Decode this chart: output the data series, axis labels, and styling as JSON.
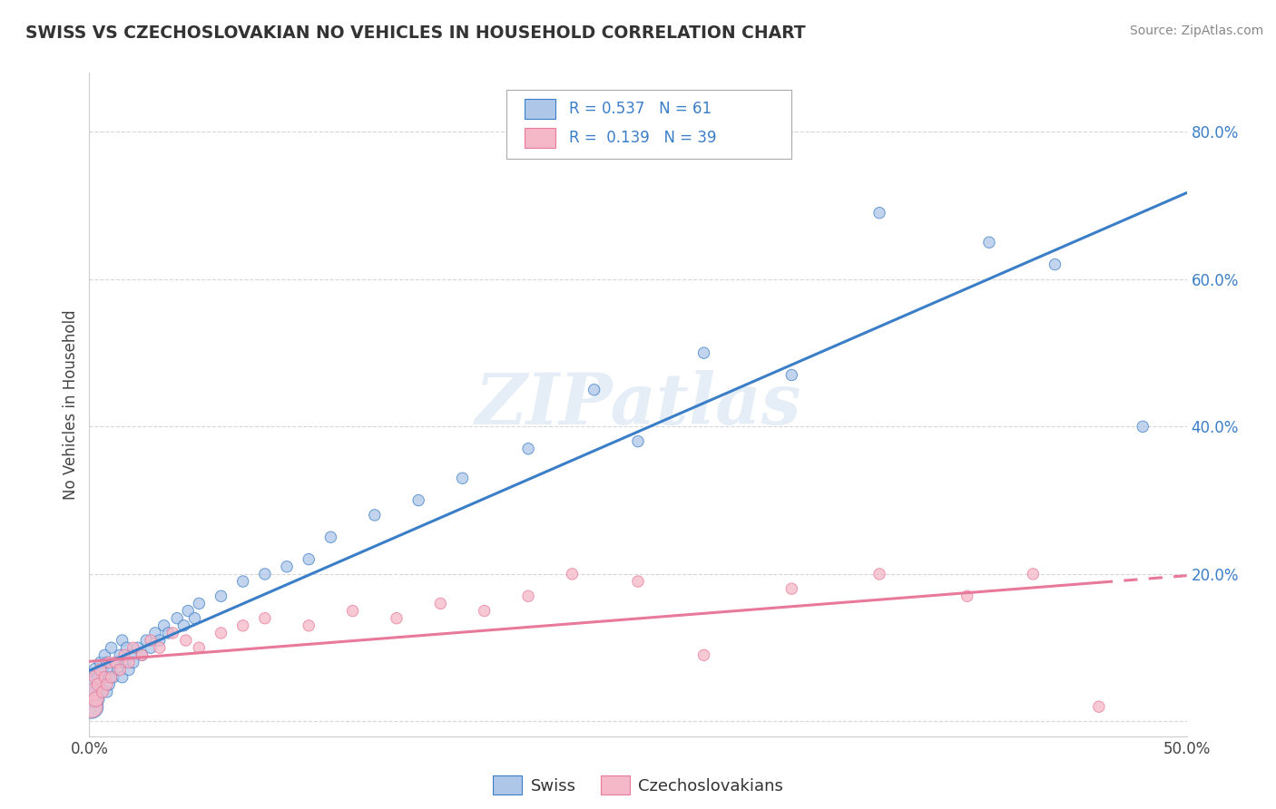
{
  "title": "SWISS VS CZECHOSLOVAKIAN NO VEHICLES IN HOUSEHOLD CORRELATION CHART",
  "source": "Source: ZipAtlas.com",
  "ylabel": "No Vehicles in Household",
  "xlim": [
    0.0,
    0.5
  ],
  "ylim": [
    -0.02,
    0.88
  ],
  "swiss_color": "#aec6e8",
  "czech_color": "#f5b8c8",
  "swiss_line_color": "#3b7ec8",
  "czech_line_color": "#e8799a",
  "legend_R_swiss": "0.537",
  "legend_N_swiss": "61",
  "legend_R_czech": "0.139",
  "legend_N_czech": "39",
  "watermark": "ZIPatlas",
  "swiss_points_x": [
    0.001,
    0.002,
    0.002,
    0.003,
    0.003,
    0.004,
    0.004,
    0.005,
    0.005,
    0.006,
    0.006,
    0.007,
    0.007,
    0.008,
    0.008,
    0.009,
    0.009,
    0.01,
    0.01,
    0.011,
    0.012,
    0.013,
    0.014,
    0.015,
    0.015,
    0.016,
    0.017,
    0.018,
    0.019,
    0.02,
    0.022,
    0.024,
    0.026,
    0.028,
    0.03,
    0.032,
    0.034,
    0.036,
    0.04,
    0.043,
    0.045,
    0.048,
    0.05,
    0.06,
    0.07,
    0.08,
    0.09,
    0.1,
    0.11,
    0.13,
    0.15,
    0.17,
    0.2,
    0.23,
    0.25,
    0.28,
    0.32,
    0.36,
    0.41,
    0.44,
    0.48
  ],
  "swiss_points_y": [
    0.02,
    0.05,
    0.03,
    0.04,
    0.07,
    0.03,
    0.06,
    0.05,
    0.08,
    0.04,
    0.07,
    0.06,
    0.09,
    0.04,
    0.08,
    0.06,
    0.05,
    0.07,
    0.1,
    0.06,
    0.08,
    0.07,
    0.09,
    0.06,
    0.11,
    0.08,
    0.1,
    0.07,
    0.09,
    0.08,
    0.1,
    0.09,
    0.11,
    0.1,
    0.12,
    0.11,
    0.13,
    0.12,
    0.14,
    0.13,
    0.15,
    0.14,
    0.16,
    0.17,
    0.19,
    0.2,
    0.21,
    0.22,
    0.25,
    0.28,
    0.3,
    0.33,
    0.37,
    0.45,
    0.38,
    0.5,
    0.47,
    0.69,
    0.65,
    0.62,
    0.4
  ],
  "czech_points_x": [
    0.001,
    0.002,
    0.003,
    0.003,
    0.004,
    0.005,
    0.006,
    0.007,
    0.008,
    0.009,
    0.01,
    0.012,
    0.014,
    0.016,
    0.018,
    0.02,
    0.024,
    0.028,
    0.032,
    0.038,
    0.044,
    0.05,
    0.06,
    0.07,
    0.08,
    0.1,
    0.12,
    0.14,
    0.16,
    0.18,
    0.2,
    0.22,
    0.25,
    0.28,
    0.32,
    0.36,
    0.4,
    0.43,
    0.46
  ],
  "czech_points_y": [
    0.02,
    0.04,
    0.03,
    0.06,
    0.05,
    0.07,
    0.04,
    0.06,
    0.05,
    0.08,
    0.06,
    0.08,
    0.07,
    0.09,
    0.08,
    0.1,
    0.09,
    0.11,
    0.1,
    0.12,
    0.11,
    0.1,
    0.12,
    0.13,
    0.14,
    0.13,
    0.15,
    0.14,
    0.16,
    0.15,
    0.17,
    0.2,
    0.19,
    0.09,
    0.18,
    0.2,
    0.17,
    0.2,
    0.02
  ],
  "swiss_sizes_base": 80,
  "czech_sizes_base": 80,
  "swiss_large_indices": [
    0,
    1,
    2,
    3,
    4,
    5,
    6,
    7,
    8
  ],
  "swiss_large_sizes": [
    350,
    200,
    160,
    130,
    120,
    100,
    90,
    85,
    80
  ],
  "czech_large_indices": [
    0,
    1,
    2,
    3,
    4,
    5,
    6,
    7
  ],
  "czech_large_sizes": [
    300,
    180,
    140,
    120,
    100,
    90,
    85,
    80
  ]
}
